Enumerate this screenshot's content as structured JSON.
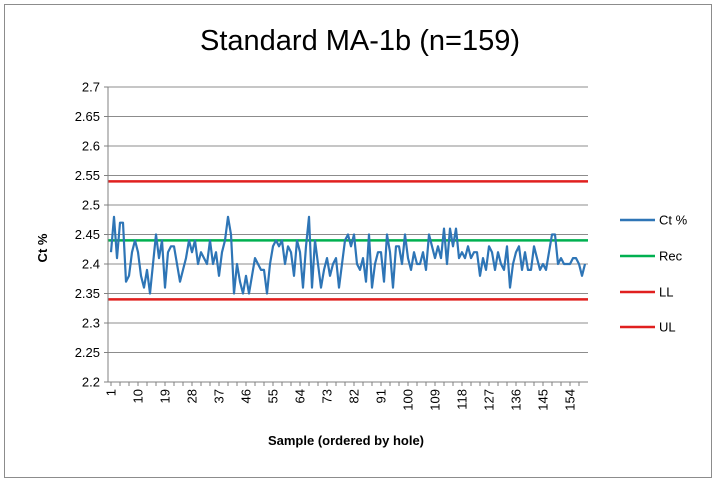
{
  "chart_data": {
    "type": "line",
    "title": "Standard MA-1b (n=159)",
    "xlabel": "Sample (ordered by hole)",
    "ylabel": "Ct %",
    "ylim": [
      2.2,
      2.7
    ],
    "yticks": [
      "2.2",
      "2.25",
      "2.3",
      "2.35",
      "2.4",
      "2.45",
      "2.5",
      "2.55",
      "2.6",
      "2.65",
      "2.7"
    ],
    "xlim": [
      1,
      159
    ],
    "xticks": [
      "1",
      "10",
      "19",
      "28",
      "37",
      "46",
      "55",
      "64",
      "73",
      "82",
      "91",
      "100",
      "109",
      "118",
      "127",
      "136",
      "145",
      "154"
    ],
    "grid": true,
    "legend_position": "right",
    "series": [
      {
        "name": "Ct %",
        "color": "#2e75b6",
        "values": [
          2.42,
          2.48,
          2.41,
          2.47,
          2.47,
          2.37,
          2.38,
          2.42,
          2.44,
          2.42,
          2.38,
          2.36,
          2.39,
          2.35,
          2.4,
          2.45,
          2.41,
          2.44,
          2.36,
          2.42,
          2.43,
          2.43,
          2.4,
          2.37,
          2.39,
          2.41,
          2.44,
          2.42,
          2.44,
          2.4,
          2.42,
          2.41,
          2.4,
          2.44,
          2.4,
          2.42,
          2.38,
          2.42,
          2.44,
          2.48,
          2.45,
          2.35,
          2.4,
          2.37,
          2.35,
          2.38,
          2.35,
          2.38,
          2.41,
          2.4,
          2.39,
          2.39,
          2.35,
          2.4,
          2.43,
          2.44,
          2.43,
          2.44,
          2.4,
          2.43,
          2.42,
          2.38,
          2.44,
          2.42,
          2.36,
          2.43,
          2.48,
          2.36,
          2.44,
          2.4,
          2.36,
          2.39,
          2.41,
          2.38,
          2.4,
          2.41,
          2.36,
          2.4,
          2.44,
          2.45,
          2.43,
          2.45,
          2.4,
          2.39,
          2.41,
          2.37,
          2.45,
          2.36,
          2.4,
          2.42,
          2.42,
          2.37,
          2.45,
          2.42,
          2.36,
          2.43,
          2.43,
          2.4,
          2.45,
          2.41,
          2.39,
          2.42,
          2.4,
          2.4,
          2.42,
          2.39,
          2.45,
          2.43,
          2.41,
          2.43,
          2.41,
          2.46,
          2.4,
          2.46,
          2.43,
          2.46,
          2.41,
          2.42,
          2.41,
          2.43,
          2.41,
          2.42,
          2.42,
          2.38,
          2.41,
          2.39,
          2.43,
          2.42,
          2.39,
          2.42,
          2.4,
          2.39,
          2.43,
          2.36,
          2.4,
          2.42,
          2.43,
          2.39,
          2.42,
          2.39,
          2.39,
          2.43,
          2.41,
          2.39,
          2.4,
          2.39,
          2.42,
          2.45,
          2.45,
          2.4,
          2.41,
          2.4,
          2.4,
          2.4,
          2.41,
          2.41,
          2.4,
          2.38,
          2.4
        ]
      },
      {
        "name": "Rec",
        "color": "#00b050",
        "constant": 2.44
      },
      {
        "name": "LL",
        "color": "#e0201f",
        "constant": 2.34
      },
      {
        "name": "UL",
        "color": "#e0201f",
        "constant": 2.54
      }
    ]
  }
}
